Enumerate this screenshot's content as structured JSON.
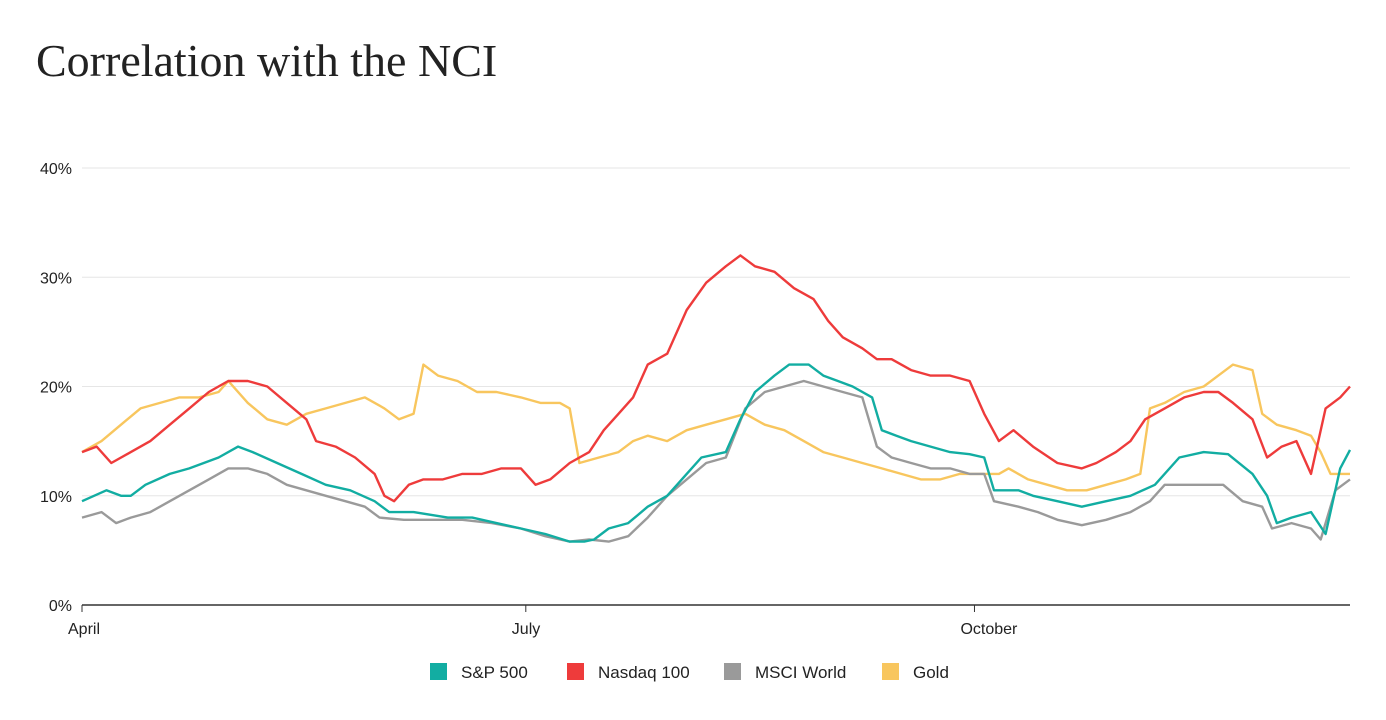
{
  "title": "Correlation with the NCI",
  "chart_data": {
    "type": "line",
    "title": "Correlation with the NCI",
    "xlabel": "",
    "ylabel": "",
    "ylim": [
      0,
      40
    ],
    "yticks": [
      0,
      10,
      20,
      30,
      40
    ],
    "ytick_labels": [
      "0%",
      "10%",
      "20%",
      "30%",
      "40%"
    ],
    "xticks": [
      {
        "label": "April",
        "day": 0
      },
      {
        "label": "July",
        "day": 91
      },
      {
        "label": "October",
        "day": 183
      }
    ],
    "xlim": [
      0,
      260
    ],
    "grid": true,
    "legend": "bottom-center",
    "series": [
      {
        "name": "S&P 500",
        "color": "#12ada2",
        "points": [
          [
            0,
            9.5
          ],
          [
            5,
            10.5
          ],
          [
            8,
            10
          ],
          [
            10,
            10
          ],
          [
            13,
            11
          ],
          [
            18,
            12
          ],
          [
            22,
            12.5
          ],
          [
            28,
            13.5
          ],
          [
            32,
            14.5
          ],
          [
            35,
            14
          ],
          [
            40,
            13
          ],
          [
            45,
            12
          ],
          [
            50,
            11
          ],
          [
            55,
            10.5
          ],
          [
            60,
            9.5
          ],
          [
            63,
            8.5
          ],
          [
            68,
            8.5
          ],
          [
            75,
            8
          ],
          [
            80,
            8
          ],
          [
            85,
            7.5
          ],
          [
            90,
            7
          ],
          [
            95,
            6.5
          ],
          [
            100,
            5.8
          ],
          [
            103,
            5.8
          ],
          [
            105,
            6
          ],
          [
            108,
            7
          ],
          [
            112,
            7.5
          ],
          [
            116,
            9
          ],
          [
            120,
            10
          ],
          [
            124,
            12
          ],
          [
            127,
            13.5
          ],
          [
            132,
            14
          ],
          [
            135,
            17
          ],
          [
            138,
            19.5
          ],
          [
            142,
            21
          ],
          [
            145,
            22
          ],
          [
            149,
            22
          ],
          [
            152,
            21
          ],
          [
            155,
            20.5
          ],
          [
            158,
            20
          ],
          [
            162,
            19
          ],
          [
            164,
            16
          ],
          [
            167,
            15.5
          ],
          [
            170,
            15
          ],
          [
            174,
            14.5
          ],
          [
            178,
            14
          ],
          [
            182,
            13.8
          ],
          [
            185,
            13.5
          ],
          [
            187,
            10.5
          ],
          [
            192,
            10.5
          ],
          [
            195,
            10
          ],
          [
            200,
            9.5
          ],
          [
            205,
            9
          ],
          [
            210,
            9.5
          ],
          [
            215,
            10
          ],
          [
            220,
            11
          ],
          [
            225,
            13.5
          ],
          [
            230,
            14
          ],
          [
            235,
            13.8
          ],
          [
            240,
            12
          ],
          [
            243,
            10
          ],
          [
            245,
            7.5
          ],
          [
            248,
            8
          ],
          [
            252,
            8.5
          ],
          [
            255,
            6.5
          ],
          [
            258,
            12.5
          ],
          [
            260,
            14.2
          ]
        ]
      },
      {
        "name": "Nasdaq 100",
        "color": "#ee3b3b",
        "points": [
          [
            0,
            14
          ],
          [
            3,
            14.5
          ],
          [
            6,
            13
          ],
          [
            10,
            14
          ],
          [
            14,
            15
          ],
          [
            18,
            16.5
          ],
          [
            22,
            18
          ],
          [
            26,
            19.5
          ],
          [
            30,
            20.5
          ],
          [
            34,
            20.5
          ],
          [
            38,
            20
          ],
          [
            42,
            18.5
          ],
          [
            46,
            17
          ],
          [
            48,
            15
          ],
          [
            52,
            14.5
          ],
          [
            56,
            13.5
          ],
          [
            60,
            12
          ],
          [
            62,
            10
          ],
          [
            64,
            9.5
          ],
          [
            67,
            11
          ],
          [
            70,
            11.5
          ],
          [
            74,
            11.5
          ],
          [
            78,
            12
          ],
          [
            82,
            12
          ],
          [
            86,
            12.5
          ],
          [
            90,
            12.5
          ],
          [
            93,
            11
          ],
          [
            96,
            11.5
          ],
          [
            100,
            13
          ],
          [
            104,
            14
          ],
          [
            107,
            16
          ],
          [
            110,
            17.5
          ],
          [
            113,
            19
          ],
          [
            116,
            22
          ],
          [
            120,
            23
          ],
          [
            124,
            27
          ],
          [
            128,
            29.5
          ],
          [
            132,
            31
          ],
          [
            135,
            32
          ],
          [
            138,
            31
          ],
          [
            142,
            30.5
          ],
          [
            146,
            29
          ],
          [
            150,
            28
          ],
          [
            153,
            26
          ],
          [
            156,
            24.5
          ],
          [
            160,
            23.5
          ],
          [
            163,
            22.5
          ],
          [
            166,
            22.5
          ],
          [
            170,
            21.5
          ],
          [
            174,
            21
          ],
          [
            178,
            21
          ],
          [
            182,
            20.5
          ],
          [
            185,
            17.5
          ],
          [
            188,
            15
          ],
          [
            191,
            16
          ],
          [
            195,
            14.5
          ],
          [
            200,
            13
          ],
          [
            205,
            12.5
          ],
          [
            208,
            13
          ],
          [
            212,
            14
          ],
          [
            215,
            15
          ],
          [
            218,
            17
          ],
          [
            222,
            18
          ],
          [
            226,
            19
          ],
          [
            230,
            19.5
          ],
          [
            233,
            19.5
          ],
          [
            236,
            18.5
          ],
          [
            240,
            17
          ],
          [
            243,
            13.5
          ],
          [
            246,
            14.5
          ],
          [
            249,
            15
          ],
          [
            252,
            12
          ],
          [
            255,
            18
          ],
          [
            258,
            19
          ],
          [
            260,
            20
          ]
        ]
      },
      {
        "name": "MSCI World",
        "color": "#9a9a9a",
        "points": [
          [
            0,
            8
          ],
          [
            4,
            8.5
          ],
          [
            7,
            7.5
          ],
          [
            10,
            8
          ],
          [
            14,
            8.5
          ],
          [
            18,
            9.5
          ],
          [
            22,
            10.5
          ],
          [
            26,
            11.5
          ],
          [
            30,
            12.5
          ],
          [
            34,
            12.5
          ],
          [
            38,
            12
          ],
          [
            42,
            11
          ],
          [
            46,
            10.5
          ],
          [
            50,
            10
          ],
          [
            54,
            9.5
          ],
          [
            58,
            9
          ],
          [
            61,
            8
          ],
          [
            66,
            7.8
          ],
          [
            72,
            7.8
          ],
          [
            78,
            7.8
          ],
          [
            84,
            7.5
          ],
          [
            90,
            7
          ],
          [
            95,
            6.3
          ],
          [
            100,
            5.8
          ],
          [
            104,
            6
          ],
          [
            108,
            5.8
          ],
          [
            112,
            6.3
          ],
          [
            116,
            8
          ],
          [
            120,
            10
          ],
          [
            124,
            11.5
          ],
          [
            128,
            13
          ],
          [
            132,
            13.5
          ],
          [
            136,
            18
          ],
          [
            140,
            19.5
          ],
          [
            144,
            20
          ],
          [
            148,
            20.5
          ],
          [
            152,
            20
          ],
          [
            156,
            19.5
          ],
          [
            160,
            19
          ],
          [
            163,
            14.5
          ],
          [
            166,
            13.5
          ],
          [
            170,
            13
          ],
          [
            174,
            12.5
          ],
          [
            178,
            12.5
          ],
          [
            182,
            12
          ],
          [
            185,
            12
          ],
          [
            187,
            9.5
          ],
          [
            192,
            9
          ],
          [
            196,
            8.5
          ],
          [
            200,
            7.8
          ],
          [
            205,
            7.3
          ],
          [
            210,
            7.8
          ],
          [
            215,
            8.5
          ],
          [
            219,
            9.5
          ],
          [
            222,
            11
          ],
          [
            226,
            11
          ],
          [
            230,
            11
          ],
          [
            234,
            11
          ],
          [
            238,
            9.5
          ],
          [
            242,
            9
          ],
          [
            244,
            7
          ],
          [
            248,
            7.5
          ],
          [
            252,
            7
          ],
          [
            254,
            6
          ],
          [
            257,
            10.5
          ],
          [
            260,
            11.5
          ]
        ]
      },
      {
        "name": "Gold",
        "color": "#f8c65e",
        "points": [
          [
            0,
            14
          ],
          [
            4,
            15
          ],
          [
            8,
            16.5
          ],
          [
            12,
            18
          ],
          [
            16,
            18.5
          ],
          [
            20,
            19
          ],
          [
            24,
            19
          ],
          [
            28,
            19.5
          ],
          [
            30,
            20.5
          ],
          [
            34,
            18.5
          ],
          [
            38,
            17
          ],
          [
            42,
            16.5
          ],
          [
            46,
            17.5
          ],
          [
            50,
            18
          ],
          [
            54,
            18.5
          ],
          [
            58,
            19
          ],
          [
            62,
            18
          ],
          [
            65,
            17
          ],
          [
            68,
            17.5
          ],
          [
            70,
            22
          ],
          [
            73,
            21
          ],
          [
            77,
            20.5
          ],
          [
            81,
            19.5
          ],
          [
            85,
            19.5
          ],
          [
            90,
            19
          ],
          [
            94,
            18.5
          ],
          [
            98,
            18.5
          ],
          [
            100,
            18
          ],
          [
            102,
            13
          ],
          [
            106,
            13.5
          ],
          [
            110,
            14
          ],
          [
            113,
            15
          ],
          [
            116,
            15.5
          ],
          [
            120,
            15
          ],
          [
            124,
            16
          ],
          [
            128,
            16.5
          ],
          [
            132,
            17
          ],
          [
            136,
            17.5
          ],
          [
            140,
            16.5
          ],
          [
            144,
            16
          ],
          [
            148,
            15
          ],
          [
            152,
            14
          ],
          [
            156,
            13.5
          ],
          [
            160,
            13
          ],
          [
            164,
            12.5
          ],
          [
            168,
            12
          ],
          [
            172,
            11.5
          ],
          [
            176,
            11.5
          ],
          [
            180,
            12
          ],
          [
            184,
            12
          ],
          [
            188,
            12
          ],
          [
            190,
            12.5
          ],
          [
            194,
            11.5
          ],
          [
            198,
            11
          ],
          [
            202,
            10.5
          ],
          [
            206,
            10.5
          ],
          [
            210,
            11
          ],
          [
            214,
            11.5
          ],
          [
            217,
            12
          ],
          [
            219,
            18
          ],
          [
            222,
            18.5
          ],
          [
            226,
            19.5
          ],
          [
            230,
            20
          ],
          [
            233,
            21
          ],
          [
            236,
            22
          ],
          [
            240,
            21.5
          ],
          [
            242,
            17.5
          ],
          [
            245,
            16.5
          ],
          [
            249,
            16
          ],
          [
            252,
            15.5
          ],
          [
            254,
            14
          ],
          [
            256,
            12
          ],
          [
            260,
            12
          ]
        ]
      }
    ]
  }
}
